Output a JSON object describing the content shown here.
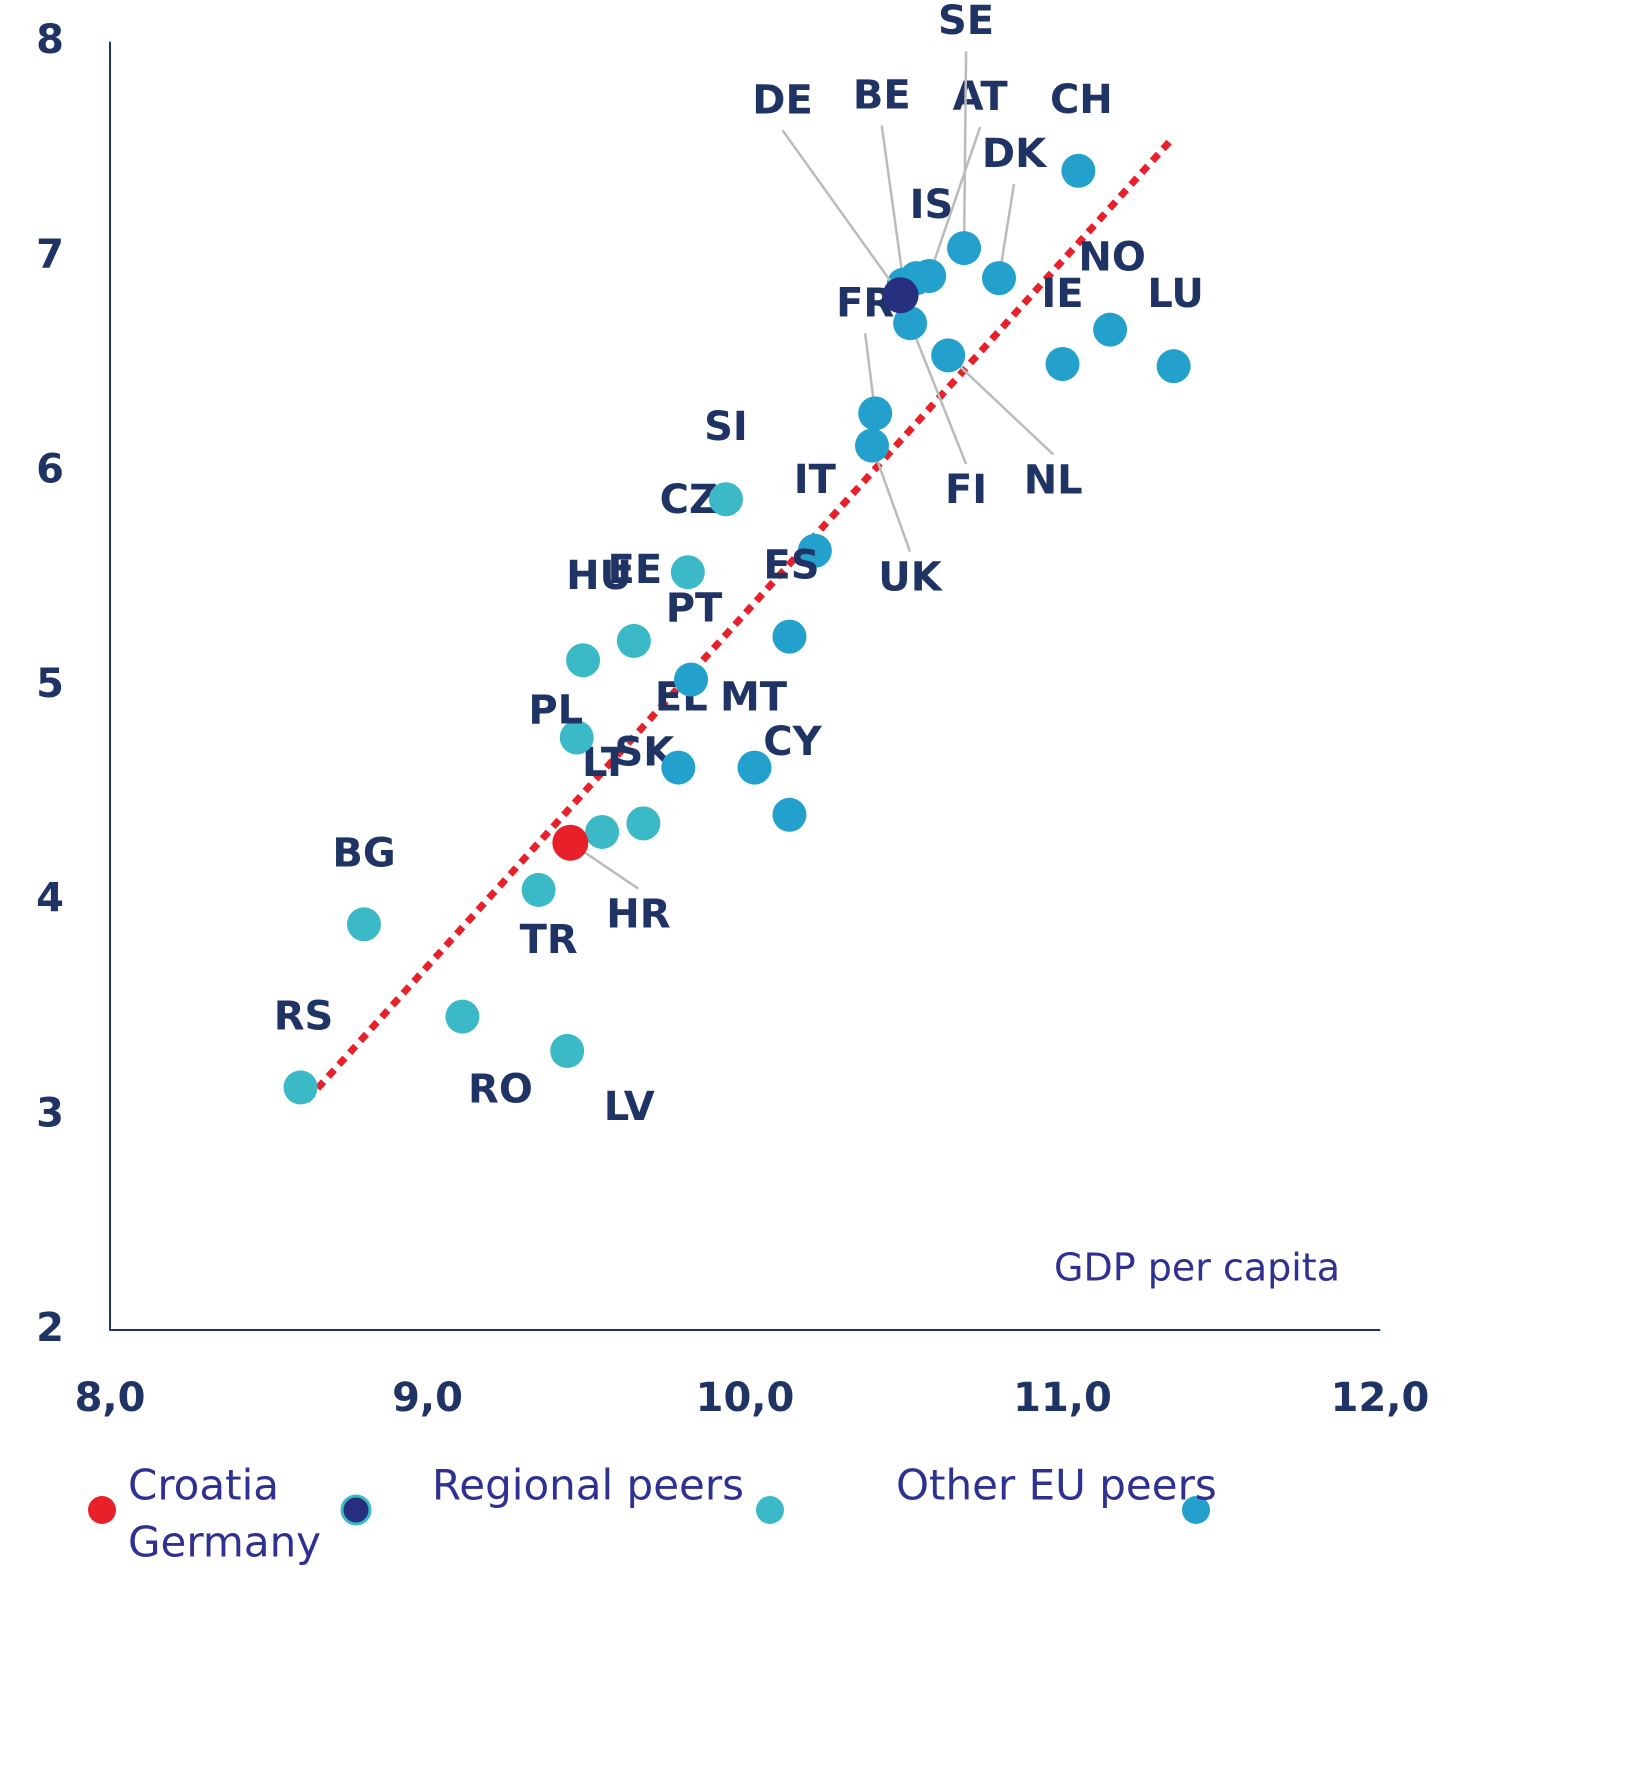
{
  "chart_data": {
    "type": "scatter",
    "x_label": "GDP per capita",
    "xlim": [
      8.0,
      12.0
    ],
    "xticks": [
      {
        "value": 8,
        "label": "8,0"
      },
      {
        "value": 9,
        "label": "9,0"
      },
      {
        "value": 10,
        "label": "10,0"
      },
      {
        "value": 11,
        "label": "11,0"
      },
      {
        "value": 12,
        "label": "12,0"
      }
    ],
    "ylim": [
      2,
      8
    ],
    "yticks": [
      2,
      3,
      4,
      5,
      6,
      7,
      8
    ],
    "trendline": {
      "color": "#e8202a",
      "x": [
        8.62,
        11.34
      ],
      "y": [
        3.07,
        7.54
      ]
    },
    "series": [
      {
        "name": "Croatia",
        "color": "#e8202a",
        "labels": [
          "HR"
        ],
        "x": [
          9.45
        ],
        "y": [
          4.27
        ]
      },
      {
        "name": "Germany",
        "color": "#27307f",
        "labels": [
          "DE"
        ],
        "x": [
          10.49
        ],
        "y": [
          6.82
        ]
      },
      {
        "name": "Regional peers",
        "color": "#3bb9c6",
        "labels": [
          "RS",
          "BG",
          "RO",
          "LV",
          "TR",
          "LT",
          "SK",
          "PL",
          "HU",
          "EE",
          "CZ",
          "SI"
        ],
        "x": [
          8.6,
          8.8,
          9.11,
          9.44,
          9.35,
          9.55,
          9.68,
          9.47,
          9.49,
          9.65,
          9.82,
          9.94
        ],
        "y": [
          3.13,
          3.89,
          3.46,
          3.3,
          4.05,
          4.32,
          4.36,
          4.76,
          5.12,
          5.21,
          5.53,
          5.87
        ]
      },
      {
        "name": "Other EU peers",
        "color": "#24a0cd",
        "labels": [
          "BE",
          "IS",
          "AT",
          "SE",
          "DK",
          "CH",
          "NO",
          "IE",
          "LU",
          "FR",
          "UK",
          "FI",
          "NL",
          "IT",
          "ES",
          "MT",
          "CY",
          "EL",
          "PT"
        ],
        "x": [
          10.5,
          10.54,
          10.58,
          10.69,
          10.8,
          11.05,
          11.15,
          11.0,
          11.35,
          10.41,
          10.4,
          10.52,
          10.64,
          10.22,
          10.14,
          10.03,
          10.14,
          9.79,
          9.83
        ],
        "y": [
          6.87,
          6.9,
          6.91,
          7.04,
          6.9,
          7.4,
          6.66,
          6.5,
          6.49,
          6.27,
          6.12,
          6.69,
          6.54,
          5.63,
          5.23,
          4.62,
          4.4,
          4.62,
          5.03
        ]
      }
    ]
  }
}
